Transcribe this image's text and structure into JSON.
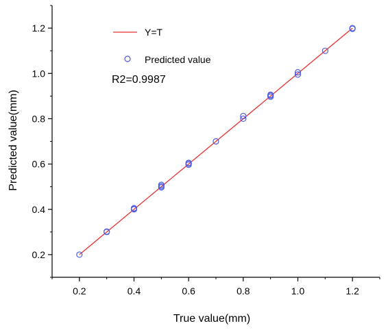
{
  "chart_data": {
    "type": "scatter",
    "xlabel": "True value(mm)",
    "ylabel": "Predicted value(mm)",
    "xlim": [
      0.1,
      1.3
    ],
    "ylim": [
      0.1,
      1.3
    ],
    "xticks": [
      "0.2",
      "0.4",
      "0.6",
      "0.8",
      "1.0",
      "1.2"
    ],
    "yticks": [
      "0.2",
      "0.4",
      "0.6",
      "0.8",
      "1.0",
      "1.2"
    ],
    "grid": false,
    "legend_position": "top-left",
    "series": [
      {
        "name": "Y=T",
        "kind": "line",
        "color": "#e8312f",
        "x": [
          0.2,
          1.2
        ],
        "y": [
          0.2,
          1.2
        ]
      },
      {
        "name": "Predicted value",
        "kind": "scatter",
        "color": "#4e5be0",
        "marker": "open-circle",
        "x": [
          0.2,
          0.3,
          0.3,
          0.4,
          0.4,
          0.4,
          0.5,
          0.5,
          0.5,
          0.6,
          0.6,
          0.6,
          0.7,
          0.8,
          0.8,
          0.9,
          0.9,
          0.9,
          1.0,
          1.0,
          1.1,
          1.2,
          1.2
        ],
        "y": [
          0.2,
          0.3,
          0.302,
          0.4,
          0.402,
          0.405,
          0.497,
          0.502,
          0.508,
          0.597,
          0.602,
          0.605,
          0.7,
          0.8,
          0.812,
          0.897,
          0.902,
          0.906,
          0.995,
          1.005,
          1.1,
          1.197,
          1.2
        ]
      }
    ],
    "annotations": [
      "R2=0.9987"
    ]
  }
}
